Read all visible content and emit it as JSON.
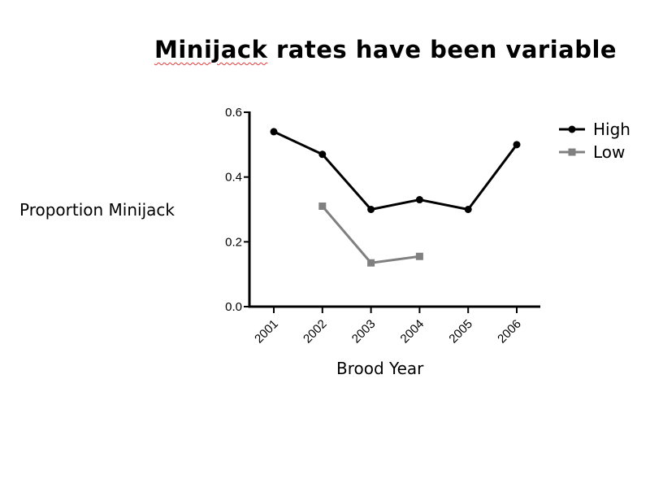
{
  "chart_data": {
    "type": "line",
    "title_part1": "Minijack",
    "title_part2": " rates have been variable",
    "xlabel": "Brood Year",
    "ylabel": "Proportion Minijack",
    "categories": [
      "2001",
      "2002",
      "2003",
      "2004",
      "2005",
      "2006"
    ],
    "ylim": [
      0,
      0.6
    ],
    "yticks": [
      "0.0",
      "0.2",
      "0.4",
      "0.6"
    ],
    "ytick_values": [
      0,
      0.2,
      0.4,
      0.6
    ],
    "grid": false,
    "legend_placement": "top-right",
    "series": [
      {
        "name": "High",
        "color": "#000000",
        "marker": "circle",
        "values": [
          0.54,
          0.47,
          0.3,
          0.33,
          0.3,
          0.5
        ]
      },
      {
        "name": "Low",
        "color": "#808080",
        "marker": "square",
        "values": [
          null,
          0.31,
          0.135,
          0.155,
          null,
          null
        ]
      }
    ]
  }
}
